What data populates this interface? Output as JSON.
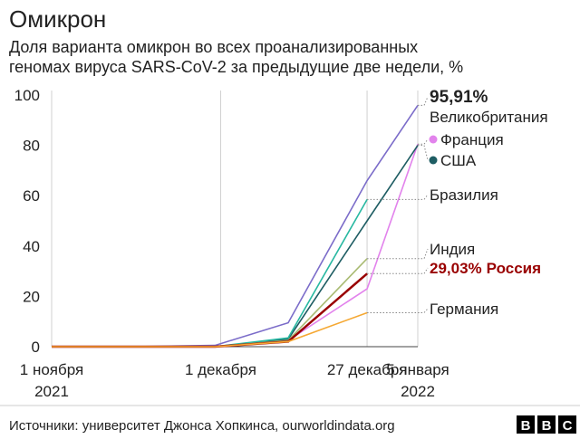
{
  "chart_data": {
    "type": "line",
    "title": "Омикрон",
    "subtitle": [
      "Доля варианта омикрон во всех проанализированных",
      "геномах вируса SARS-CoV-2 за предыдущие две недели, %"
    ],
    "x": [
      "2021-11-01",
      "2021-11-15",
      "2021-11-30",
      "2021-12-13",
      "2021-12-27",
      "2022-01-05"
    ],
    "xlim": [
      "2021-11-01",
      "2022-01-05"
    ],
    "xticks": [
      {
        "value": "2021-11-01",
        "label": [
          "1 ноября",
          "2021"
        ]
      },
      {
        "value": "2021-12-01",
        "label": [
          "1 декабря"
        ]
      },
      {
        "value": "2021-12-27",
        "label": [
          "27 декабря"
        ]
      },
      {
        "value": "2022-01-05",
        "label": [
          "5 января",
          "2022"
        ]
      }
    ],
    "ylim": [
      0,
      100
    ],
    "yticks": [
      0,
      20,
      40,
      60,
      80,
      100
    ],
    "series": [
      {
        "name": "Великобритания",
        "color": "#7b6cc9",
        "values": [
          0,
          0,
          0.5,
          9.5,
          66,
          95.91
        ],
        "value_labels": [
          null,
          null,
          null,
          null,
          null,
          "95,91%"
        ]
      },
      {
        "name": "Франция",
        "color": "#e283ec",
        "values": [
          0,
          0,
          0,
          2.5,
          23,
          80.5
        ]
      },
      {
        "name": "США",
        "color": "#1e5d63",
        "values": [
          0,
          0,
          0,
          3,
          50,
          80
        ]
      },
      {
        "name": "Бразилия",
        "color": "#27b8a1",
        "values": [
          0,
          0,
          0,
          3.5,
          58.5,
          null
        ]
      },
      {
        "name": "Индия",
        "color": "#a9bb73",
        "values": [
          0,
          0,
          0,
          2.5,
          35,
          null
        ]
      },
      {
        "name": "Россия",
        "color": "#990000",
        "values": [
          0,
          0,
          0,
          2,
          29.03,
          null
        ],
        "value_labels": [
          null,
          null,
          null,
          null,
          "29,03%",
          null
        ]
      },
      {
        "name": "Германия",
        "color": "#f5a833",
        "values": [
          0,
          0,
          0,
          2,
          13.5,
          null
        ]
      }
    ],
    "source": "Источники: университет Джонса Хопкинса, ourworldindata.org",
    "brand": [
      "B",
      "B",
      "C"
    ]
  }
}
